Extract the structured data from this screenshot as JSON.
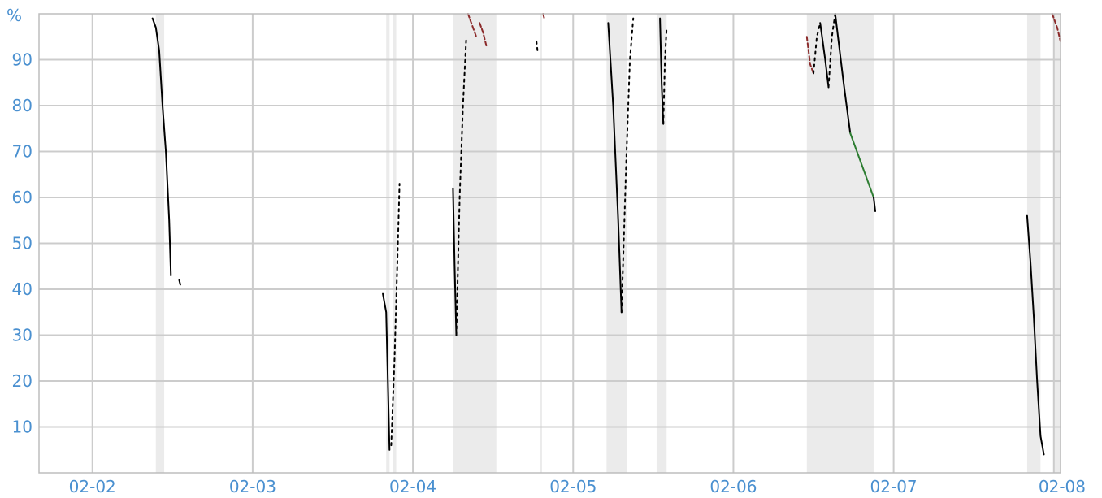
{
  "chart_data": {
    "type": "line",
    "title": "",
    "xlabel": "",
    "ylabel": "%",
    "ylim": [
      0,
      100
    ],
    "yticks": [
      10,
      20,
      30,
      40,
      50,
      60,
      70,
      80,
      90
    ],
    "xlim": [
      "2023-02-01T16:00",
      "2023-02-08T01:00"
    ],
    "xticks": [
      {
        "t": "2023-02-02T00:00",
        "label": "02-02"
      },
      {
        "t": "2023-02-03T00:00",
        "label": "02-03"
      },
      {
        "t": "2023-02-04T00:00",
        "label": "02-04"
      },
      {
        "t": "2023-02-05T00:00",
        "label": "02-05"
      },
      {
        "t": "2023-02-06T00:00",
        "label": "02-06"
      },
      {
        "t": "2023-02-07T00:00",
        "label": "02-07"
      },
      {
        "t": "2023-02-08T00:00",
        "label": "02-08"
      }
    ],
    "grid": true,
    "colors": {
      "axis_label": "#4a90d0",
      "grid": "#cccccc",
      "shade": "#ebebeb",
      "discharge": "#000000",
      "charge": "#000000",
      "full": "#8b2a2a",
      "idle": "#2e7d32"
    },
    "shaded_periods": [
      [
        "2023-02-02T09:30",
        "2023-02-02T10:45"
      ],
      [
        "2023-02-03T20:00",
        "2023-02-03T20:30"
      ],
      [
        "2023-02-03T21:00",
        "2023-02-03T21:30"
      ],
      [
        "2023-02-04T06:00",
        "2023-02-04T12:30"
      ],
      [
        "2023-02-04T19:00",
        "2023-02-04T19:20"
      ],
      [
        "2023-02-05T05:00",
        "2023-02-05T08:00"
      ],
      [
        "2023-02-05T12:30",
        "2023-02-05T14:00"
      ],
      [
        "2023-02-06T11:00",
        "2023-02-06T21:00"
      ],
      [
        "2023-02-07T20:00",
        "2023-02-07T22:00"
      ],
      [
        "2023-02-08T00:00",
        "2023-02-08T01:00"
      ]
    ],
    "series": [
      {
        "style": "discharge",
        "points": [
          [
            "2023-02-02T09:00",
            99
          ],
          [
            "2023-02-02T09:30",
            97
          ],
          [
            "2023-02-02T10:00",
            92
          ],
          [
            "2023-02-02T10:30",
            80
          ],
          [
            "2023-02-02T11:00",
            70
          ],
          [
            "2023-02-02T11:30",
            55
          ],
          [
            "2023-02-02T11:45",
            43
          ]
        ]
      },
      {
        "style": "discharge",
        "points": [
          [
            "2023-02-02T13:00",
            42
          ],
          [
            "2023-02-02T13:10",
            41
          ]
        ]
      },
      {
        "style": "discharge",
        "points": [
          [
            "2023-02-03T19:30",
            39
          ],
          [
            "2023-02-03T20:00",
            35
          ],
          [
            "2023-02-03T20:30",
            5
          ]
        ]
      },
      {
        "style": "charge",
        "points": [
          [
            "2023-02-03T20:45",
            6
          ],
          [
            "2023-02-03T21:15",
            25
          ],
          [
            "2023-02-03T21:45",
            50
          ],
          [
            "2023-02-03T22:00",
            63
          ]
        ]
      },
      {
        "style": "discharge",
        "points": [
          [
            "2023-02-04T06:00",
            62
          ],
          [
            "2023-02-04T06:15",
            45
          ],
          [
            "2023-02-04T06:30",
            30
          ]
        ]
      },
      {
        "style": "charge",
        "points": [
          [
            "2023-02-04T06:30",
            30
          ],
          [
            "2023-02-04T07:00",
            60
          ],
          [
            "2023-02-04T07:30",
            80
          ],
          [
            "2023-02-04T08:00",
            95
          ]
        ]
      },
      {
        "style": "full",
        "points": [
          [
            "2023-02-04T08:15",
            100
          ],
          [
            "2023-02-04T09:00",
            97
          ],
          [
            "2023-02-04T09:30",
            95
          ]
        ]
      },
      {
        "style": "full",
        "points": [
          [
            "2023-02-04T10:00",
            98
          ],
          [
            "2023-02-04T10:30",
            96
          ],
          [
            "2023-02-04T11:00",
            93
          ]
        ]
      },
      {
        "style": "charge",
        "points": [
          [
            "2023-02-04T18:30",
            94
          ],
          [
            "2023-02-04T18:40",
            92
          ]
        ]
      },
      {
        "style": "full",
        "points": [
          [
            "2023-02-04T19:30",
            100
          ],
          [
            "2023-02-04T19:40",
            99
          ]
        ]
      },
      {
        "style": "discharge",
        "points": [
          [
            "2023-02-05T05:15",
            98
          ],
          [
            "2023-02-05T06:00",
            80
          ],
          [
            "2023-02-05T06:45",
            55
          ],
          [
            "2023-02-05T07:15",
            35
          ]
        ]
      },
      {
        "style": "charge",
        "points": [
          [
            "2023-02-05T07:15",
            35
          ],
          [
            "2023-02-05T08:00",
            70
          ],
          [
            "2023-02-05T08:30",
            90
          ],
          [
            "2023-02-05T09:00",
            99
          ]
        ]
      },
      {
        "style": "discharge",
        "points": [
          [
            "2023-02-05T13:00",
            99
          ],
          [
            "2023-02-05T13:15",
            85
          ],
          [
            "2023-02-05T13:30",
            76
          ]
        ]
      },
      {
        "style": "charge",
        "points": [
          [
            "2023-02-05T13:30",
            76
          ],
          [
            "2023-02-05T13:45",
            90
          ],
          [
            "2023-02-05T14:00",
            97
          ]
        ]
      },
      {
        "style": "full",
        "points": [
          [
            "2023-02-06T11:00",
            95
          ],
          [
            "2023-02-06T11:30",
            89
          ],
          [
            "2023-02-06T12:00",
            87
          ]
        ]
      },
      {
        "style": "charge",
        "points": [
          [
            "2023-02-06T12:00",
            87
          ],
          [
            "2023-02-06T12:30",
            95
          ],
          [
            "2023-02-06T13:00",
            98
          ]
        ]
      },
      {
        "style": "discharge",
        "points": [
          [
            "2023-02-06T13:00",
            98
          ],
          [
            "2023-02-06T13:45",
            90
          ],
          [
            "2023-02-06T14:15",
            84
          ]
        ]
      },
      {
        "style": "charge",
        "points": [
          [
            "2023-02-06T14:15",
            84
          ],
          [
            "2023-02-06T14:45",
            95
          ],
          [
            "2023-02-06T15:15",
            100
          ]
        ]
      },
      {
        "style": "discharge",
        "points": [
          [
            "2023-02-06T15:15",
            100
          ],
          [
            "2023-02-06T16:30",
            85
          ],
          [
            "2023-02-06T17:30",
            74
          ]
        ]
      },
      {
        "style": "idle",
        "points": [
          [
            "2023-02-06T17:30",
            74
          ],
          [
            "2023-02-06T21:00",
            60
          ]
        ]
      },
      {
        "style": "discharge",
        "points": [
          [
            "2023-02-06T21:00",
            60
          ],
          [
            "2023-02-06T21:15",
            57
          ]
        ]
      },
      {
        "style": "discharge",
        "points": [
          [
            "2023-02-07T20:00",
            56
          ],
          [
            "2023-02-07T20:30",
            46
          ],
          [
            "2023-02-07T21:00",
            34
          ],
          [
            "2023-02-07T21:30",
            20
          ],
          [
            "2023-02-07T22:00",
            8
          ],
          [
            "2023-02-07T22:30",
            4
          ]
        ]
      },
      {
        "style": "full",
        "points": [
          [
            "2023-02-07T23:45",
            100
          ],
          [
            "2023-02-08T00:30",
            97
          ],
          [
            "2023-02-08T01:00",
            94
          ]
        ]
      }
    ]
  }
}
